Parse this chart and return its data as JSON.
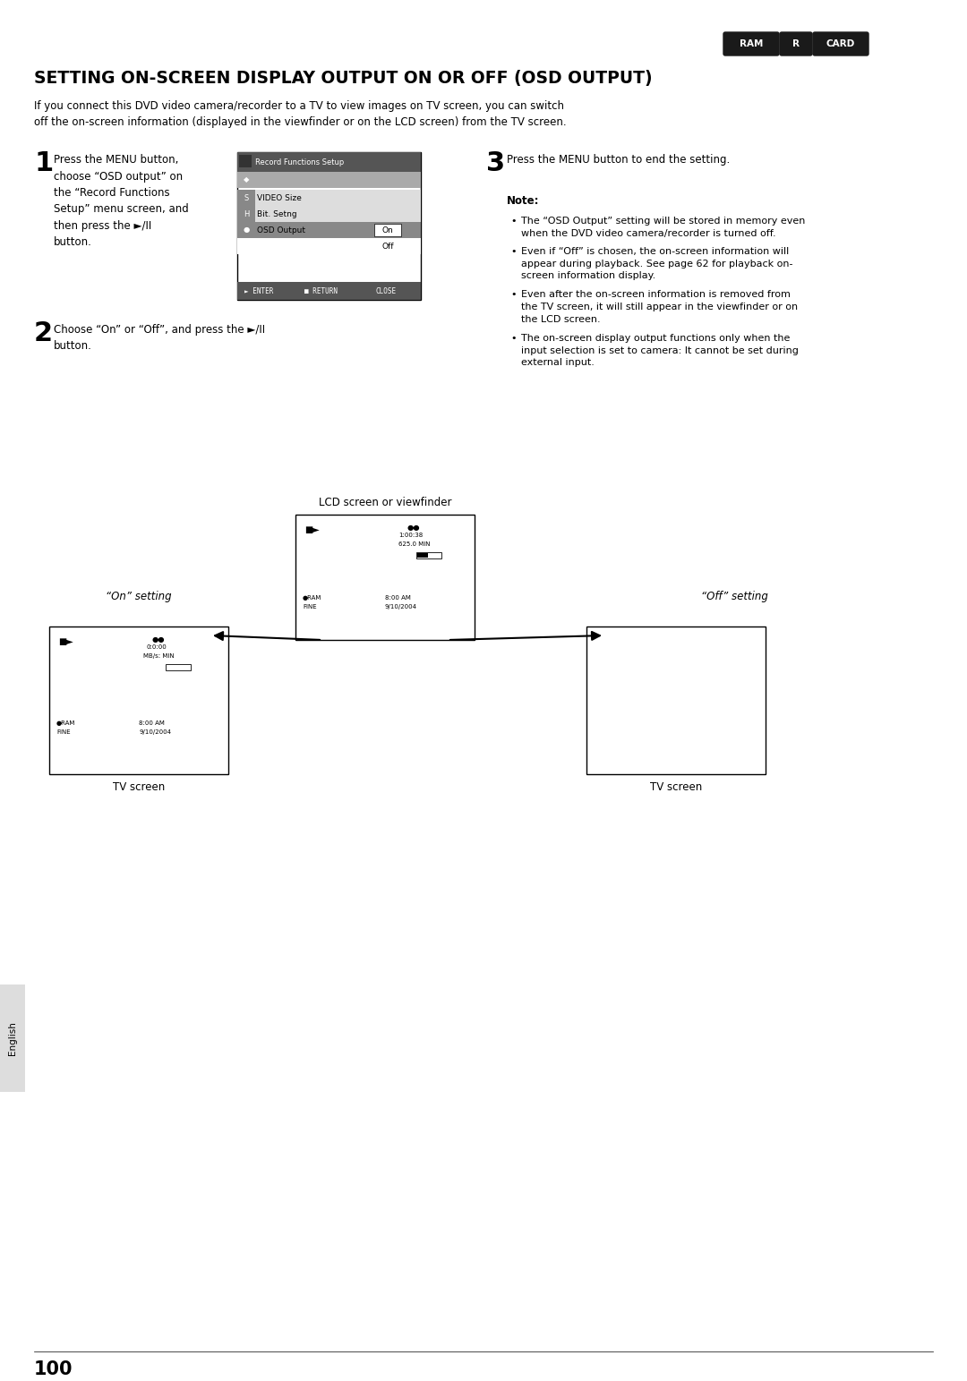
{
  "title": "SETTING ON-SCREEN DISPLAY OUTPUT ON OR OFF (OSD OUTPUT)",
  "badges": [
    "RAM",
    "R",
    "CARD"
  ],
  "intro_text": "If you connect this DVD video camera/recorder to a TV to view images on TV screen, you can switch\noff the on-screen information (displayed in the viewfinder or on the LCD screen) from the TV screen.",
  "step1_text": "Press the MENU button,\nchoose “OSD output” on\nthe “Record Functions\nSetup” menu screen, and\nthen press the ►/II\nbutton.",
  "step2_text": "Choose “On” or “Off”, and press the ►/II\nbutton.",
  "step3_text": "Press the MENU button to end the setting.",
  "note_title": "Note:",
  "note_bullets": [
    "The “OSD Output” setting will be stored in memory even\nwhen the DVD video camera/recorder is turned off.",
    "Even if “Off” is chosen, the on-screen information will\nappear during playback. See page 62 for playback on-\nscreen information display.",
    "Even after the on-screen information is removed from\nthe TV screen, it will still appear in the viewfinder or on\nthe LCD screen.",
    "The on-screen display output functions only when the\ninput selection is set to camera: It cannot be set during\nexternal input."
  ],
  "lcd_label": "LCD screen or viewfinder",
  "on_setting_label": "“On” setting",
  "off_setting_label": "“Off” setting",
  "tv_screen_label": "TV screen",
  "page_number": "100",
  "sidebar_text": "English",
  "background_color": "#ffffff",
  "text_color": "#000000",
  "badge_bg": "#1a1a1a",
  "badge_text": "#ffffff"
}
